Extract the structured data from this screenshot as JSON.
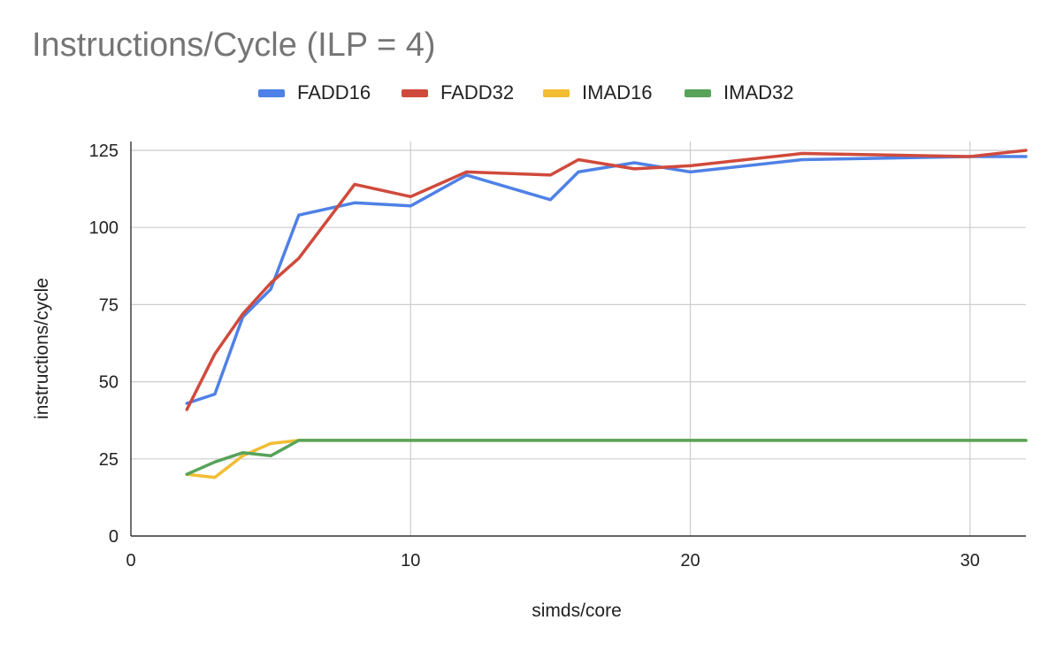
{
  "chart_data": {
    "type": "line",
    "title": "Instructions/Cycle (ILP = 4)",
    "xlabel": "simds/core",
    "ylabel": "instructions/cycle",
    "xlim": [
      0,
      32
    ],
    "ylim": [
      0,
      125
    ],
    "xticks": [
      0,
      10,
      20,
      30
    ],
    "yticks": [
      0,
      25,
      50,
      75,
      100,
      125
    ],
    "grid": true,
    "legend_position": "top",
    "series": [
      {
        "name": "FADD16",
        "color": "#4f81e6",
        "points": [
          [
            2,
            43
          ],
          [
            3,
            46
          ],
          [
            4,
            71
          ],
          [
            5,
            80
          ],
          [
            6,
            104
          ],
          [
            8,
            108
          ],
          [
            10,
            107
          ],
          [
            12,
            117
          ],
          [
            15,
            109
          ],
          [
            16,
            118
          ],
          [
            18,
            121
          ],
          [
            20,
            118
          ],
          [
            24,
            122
          ],
          [
            30,
            123
          ],
          [
            32,
            123
          ]
        ]
      },
      {
        "name": "FADD32",
        "color": "#d04a3c",
        "points": [
          [
            2,
            41
          ],
          [
            3,
            59
          ],
          [
            4,
            72
          ],
          [
            5,
            82
          ],
          [
            6,
            90
          ],
          [
            8,
            114
          ],
          [
            10,
            110
          ],
          [
            12,
            118
          ],
          [
            15,
            117
          ],
          [
            16,
            122
          ],
          [
            18,
            119
          ],
          [
            20,
            120
          ],
          [
            24,
            124
          ],
          [
            30,
            123
          ],
          [
            32,
            125
          ]
        ]
      },
      {
        "name": "IMAD16",
        "color": "#f2bd33",
        "points": [
          [
            2,
            20
          ],
          [
            3,
            19
          ],
          [
            4,
            26
          ],
          [
            5,
            30
          ],
          [
            6,
            31
          ],
          [
            8,
            31
          ],
          [
            10,
            31
          ],
          [
            12,
            31
          ],
          [
            16,
            31
          ],
          [
            20,
            31
          ],
          [
            24,
            31
          ],
          [
            30,
            31
          ],
          [
            32,
            31
          ]
        ]
      },
      {
        "name": "IMAD32",
        "color": "#57a35a",
        "points": [
          [
            2,
            20
          ],
          [
            3,
            24
          ],
          [
            4,
            27
          ],
          [
            5,
            26
          ],
          [
            6,
            31
          ],
          [
            8,
            31
          ],
          [
            10,
            31
          ],
          [
            12,
            31
          ],
          [
            16,
            31
          ],
          [
            20,
            31
          ],
          [
            24,
            31
          ],
          [
            30,
            31
          ],
          [
            32,
            31
          ]
        ]
      }
    ]
  }
}
